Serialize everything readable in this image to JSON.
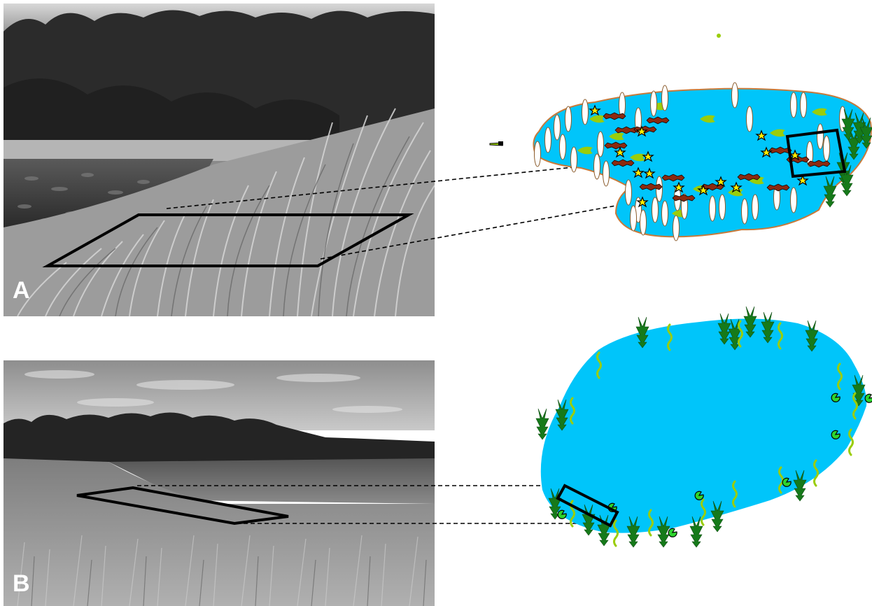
{
  "panels": [
    {
      "label": "A"
    },
    {
      "label": "B"
    }
  ],
  "colors": {
    "water": "#00c5fa",
    "shoreline": "#c87a3a",
    "emergent_plant": "#167a1a",
    "submerged_plant": "#9acd0a",
    "floating_leaf": "#ffffff",
    "floating_leaf_outline": "#8a5a2a",
    "duckweed_leaf": "#2ed42e",
    "bug_body": "#8b2a10",
    "flower": "#ffee00",
    "outline": "#000000"
  },
  "icons": {
    "emergent": "cattail-icon",
    "submerged": "wavy-plant-icon",
    "floating": "lily-pad-icon",
    "invertebrate": "bug-icon",
    "flower": "star-flower-icon",
    "duckweed": "duckweed-icon"
  }
}
